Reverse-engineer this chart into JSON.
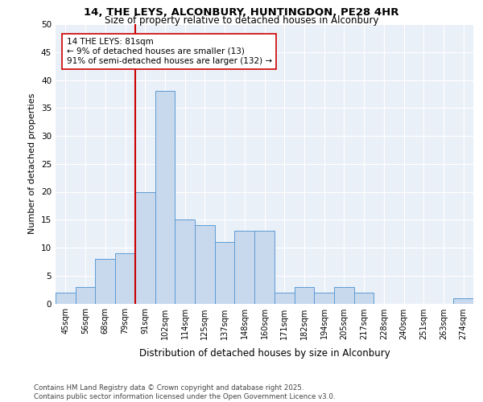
{
  "title_line1": "14, THE LEYS, ALCONBURY, HUNTINGDON, PE28 4HR",
  "title_line2": "Size of property relative to detached houses in Alconbury",
  "xlabel": "Distribution of detached houses by size in Alconbury",
  "ylabel": "Number of detached properties",
  "categories": [
    "45sqm",
    "56sqm",
    "68sqm",
    "79sqm",
    "91sqm",
    "102sqm",
    "114sqm",
    "125sqm",
    "137sqm",
    "148sqm",
    "160sqm",
    "171sqm",
    "182sqm",
    "194sqm",
    "205sqm",
    "217sqm",
    "228sqm",
    "240sqm",
    "251sqm",
    "263sqm",
    "274sqm"
  ],
  "values": [
    2,
    3,
    8,
    9,
    20,
    38,
    15,
    14,
    11,
    13,
    13,
    2,
    3,
    2,
    3,
    2,
    0,
    0,
    0,
    0,
    1
  ],
  "bar_color": "#c9d9ed",
  "bar_edge_color": "#5b9bd5",
  "vline_x": 3.5,
  "vline_color": "#cc0000",
  "annotation_text": "14 THE LEYS: 81sqm\n← 9% of detached houses are smaller (13)\n91% of semi-detached houses are larger (132) →",
  "annotation_box_color": "#ffffff",
  "annotation_box_edge": "#cc0000",
  "ylim": [
    0,
    50
  ],
  "yticks": [
    0,
    5,
    10,
    15,
    20,
    25,
    30,
    35,
    40,
    45,
    50
  ],
  "bg_color": "#eaf0f8",
  "footer": "Contains HM Land Registry data © Crown copyright and database right 2025.\nContains public sector information licensed under the Open Government Licence v3.0."
}
